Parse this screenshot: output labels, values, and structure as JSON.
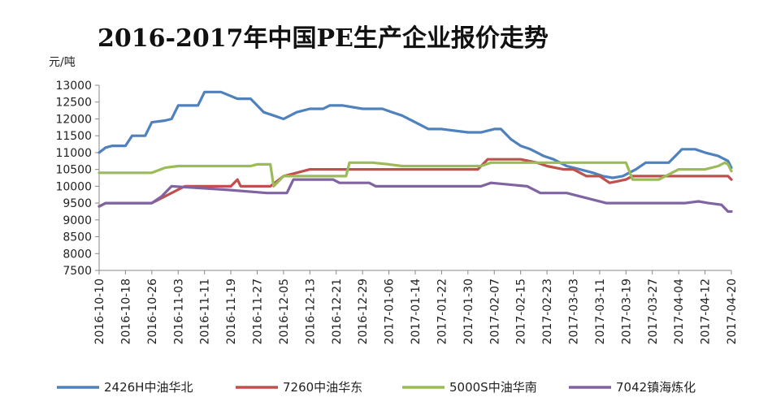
{
  "chart_data": {
    "type": "line",
    "title": "2016-2017年中国PE生产企业报价走势",
    "ylabel": "元/吨",
    "xlabel": "",
    "ylim": [
      7500,
      13000
    ],
    "yticks": [
      7500,
      8000,
      8500,
      9000,
      9500,
      10000,
      10500,
      11000,
      11500,
      12000,
      12500,
      13000
    ],
    "x_tick_labels": [
      "2016-10-10",
      "2016-10-18",
      "2016-10-26",
      "2016-11-03",
      "2016-11-11",
      "2016-11-19",
      "2016-11-27",
      "2016-12-05",
      "2016-12-13",
      "2016-12-21",
      "2016-12-29",
      "2017-01-06",
      "2017-01-14",
      "2017-01-22",
      "2017-01-30",
      "2017-02-07",
      "2017-02-15",
      "2017-02-23",
      "2017-03-03",
      "2017-03-11",
      "2017-03-19",
      "2017-03-27",
      "2017-04-04",
      "2017-04-12",
      "2017-04-20"
    ],
    "grid": false,
    "legend_position": "bottom",
    "series": [
      {
        "name": "2426H中油华北",
        "color": "#4f81bd",
        "x": [
          "2016-10-10",
          "2016-10-12",
          "2016-10-14",
          "2016-10-18",
          "2016-10-20",
          "2016-10-24",
          "2016-10-26",
          "2016-10-30",
          "2016-11-01",
          "2016-11-03",
          "2016-11-09",
          "2016-11-11",
          "2016-11-16",
          "2016-11-21",
          "2016-11-25",
          "2016-11-29",
          "2016-12-02",
          "2016-12-05",
          "2016-12-07",
          "2016-12-09",
          "2016-12-13",
          "2016-12-17",
          "2016-12-19",
          "2016-12-23",
          "2016-12-29",
          "2017-01-01",
          "2017-01-04",
          "2017-01-07",
          "2017-01-10",
          "2017-01-14",
          "2017-01-18",
          "2017-01-22",
          "2017-01-30",
          "2017-02-03",
          "2017-02-07",
          "2017-02-09",
          "2017-02-12",
          "2017-02-15",
          "2017-02-18",
          "2017-02-20",
          "2017-02-22",
          "2017-02-25",
          "2017-03-01",
          "2017-03-05",
          "2017-03-09",
          "2017-03-12",
          "2017-03-15",
          "2017-03-18",
          "2017-03-22",
          "2017-03-25",
          "2017-04-01",
          "2017-04-03",
          "2017-04-05",
          "2017-04-09",
          "2017-04-12",
          "2017-04-16",
          "2017-04-18",
          "2017-04-19",
          "2017-04-20"
        ],
        "y": [
          11000,
          11150,
          11200,
          11200,
          11500,
          11500,
          11900,
          11950,
          12000,
          12400,
          12400,
          12800,
          12800,
          12600,
          12600,
          12200,
          12100,
          12000,
          12100,
          12200,
          12300,
          12300,
          12400,
          12400,
          12300,
          12300,
          12300,
          12200,
          12100,
          11900,
          11700,
          11700,
          11600,
          11600,
          11700,
          11700,
          11400,
          11200,
          11100,
          11000,
          10900,
          10800,
          10600,
          10500,
          10400,
          10300,
          10250,
          10300,
          10500,
          10700,
          10700,
          10900,
          11100,
          11100,
          11000,
          10900,
          10800,
          10750,
          10550
        ]
      },
      {
        "name": "7260中油华东",
        "color": "#c0504d",
        "x": [
          "2016-10-10",
          "2016-10-12",
          "2016-10-26",
          "2016-10-28",
          "2016-11-01",
          "2016-11-03",
          "2016-11-05",
          "2016-11-19",
          "2016-11-21",
          "2016-11-22",
          "2016-11-24",
          "2016-12-01",
          "2016-12-05",
          "2016-12-09",
          "2016-12-13",
          "2017-02-02",
          "2017-02-05",
          "2017-02-15",
          "2017-02-20",
          "2017-02-23",
          "2017-02-28",
          "2017-03-03",
          "2017-03-07",
          "2017-03-11",
          "2017-03-14",
          "2017-03-19",
          "2017-03-21",
          "2017-04-19",
          "2017-04-20"
        ],
        "y": [
          9400,
          9500,
          9500,
          9600,
          9800,
          9900,
          10000,
          10000,
          10200,
          10000,
          10000,
          10000,
          10300,
          10400,
          10500,
          10500,
          10800,
          10800,
          10700,
          10600,
          10500,
          10500,
          10300,
          10300,
          10100,
          10200,
          10300,
          10300,
          10200
        ]
      },
      {
        "name": "5000S中油华南",
        "color": "#9bbb59",
        "x": [
          "2016-10-10",
          "2016-10-26",
          "2016-10-30",
          "2016-11-03",
          "2016-11-06",
          "2016-11-25",
          "2016-11-27",
          "2016-12-01",
          "2016-12-02",
          "2016-12-05",
          "2016-12-07",
          "2016-12-24",
          "2016-12-25",
          "2017-01-01",
          "2017-01-06",
          "2017-01-10",
          "2017-02-03",
          "2017-02-06",
          "2017-03-19",
          "2017-03-21",
          "2017-03-29",
          "2017-04-04",
          "2017-04-12",
          "2017-04-16",
          "2017-04-18",
          "2017-04-19",
          "2017-04-20"
        ],
        "y": [
          10400,
          10400,
          10550,
          10600,
          10600,
          10600,
          10650,
          10650,
          10000,
          10300,
          10300,
          10300,
          10700,
          10700,
          10650,
          10600,
          10600,
          10700,
          10700,
          10200,
          10200,
          10500,
          10500,
          10600,
          10700,
          10650,
          10450
        ]
      },
      {
        "name": "7042镇海炼化",
        "color": "#8064a2",
        "x": [
          "2016-10-10",
          "2016-10-12",
          "2016-10-26",
          "2016-10-29",
          "2016-11-01",
          "2016-11-17",
          "2016-11-30",
          "2016-12-06",
          "2016-12-08",
          "2016-12-20",
          "2016-12-22",
          "2016-12-31",
          "2017-01-02",
          "2017-01-06",
          "2017-02-03",
          "2017-02-06",
          "2017-02-17",
          "2017-02-21",
          "2017-03-01",
          "2017-03-05",
          "2017-03-09",
          "2017-03-13",
          "2017-03-27",
          "2017-04-06",
          "2017-04-10",
          "2017-04-13",
          "2017-04-17",
          "2017-04-19",
          "2017-04-20"
        ],
        "y": [
          9400,
          9500,
          9500,
          9700,
          10000,
          9900,
          9800,
          9800,
          10200,
          10200,
          10100,
          10100,
          10000,
          10000,
          10000,
          10100,
          10000,
          9800,
          9800,
          9700,
          9600,
          9500,
          9500,
          9500,
          9550,
          9500,
          9450,
          9250,
          9250
        ]
      }
    ]
  }
}
